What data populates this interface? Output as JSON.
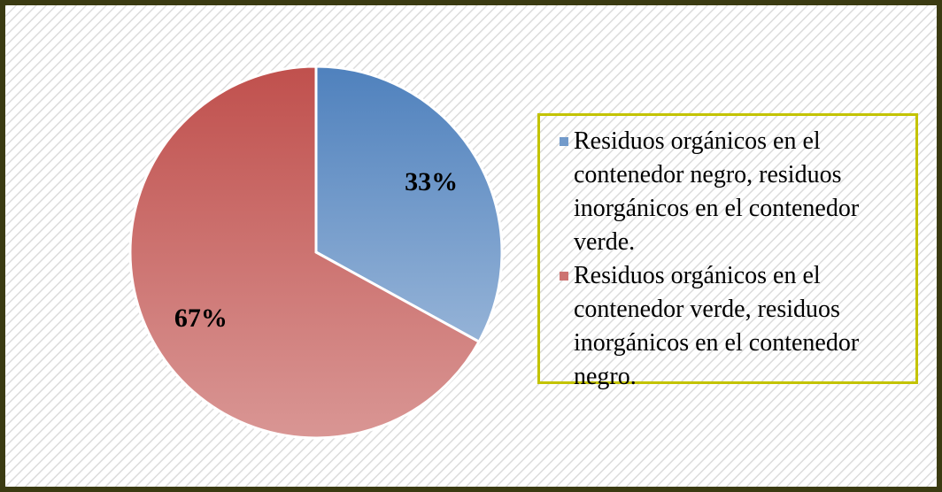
{
  "chart_data": {
    "type": "pie",
    "categories": [
      "Residuos orgánicos en el contenedor negro, residuos inorgánicos en el contenedor verde.",
      "Residuos orgánicos en el contenedor verde, residuos inorgánicos en el contenedor negro."
    ],
    "values": [
      33,
      67
    ],
    "value_labels": [
      "33%",
      "67%"
    ],
    "colors": [
      "#4f81bd",
      "#c0504d"
    ],
    "legend": "right"
  }
}
